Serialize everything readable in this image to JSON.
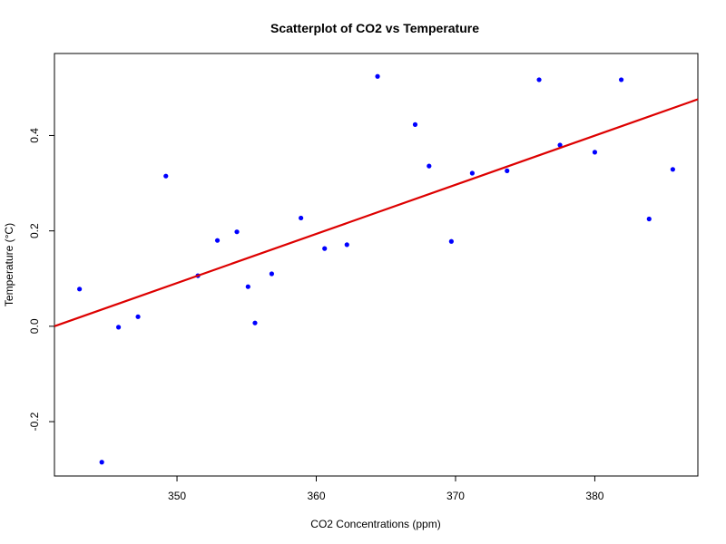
{
  "chart_data": {
    "type": "scatter",
    "title": "Scatterplot of CO2 vs Temperature",
    "xlabel": "CO2 Concentrations (ppm)",
    "ylabel": "Temperature (°C)",
    "xlim": [
      341.2,
      387.4
    ],
    "ylim": [
      -0.314,
      0.572
    ],
    "x_ticks": [
      350,
      360,
      370,
      380
    ],
    "x_tick_labels": [
      "350",
      "360",
      "370",
      "380"
    ],
    "y_ticks": [
      -0.2,
      0.0,
      0.2,
      0.4
    ],
    "y_tick_labels": [
      "-0.2",
      "0.0",
      "0.2",
      "0.4"
    ],
    "grid": false,
    "legend": "none",
    "point_color": "#0000ff",
    "line_color": "#dd0000",
    "points": [
      {
        "x": 343.0,
        "y": 0.078
      },
      {
        "x": 344.6,
        "y": -0.285
      },
      {
        "x": 345.8,
        "y": -0.002
      },
      {
        "x": 347.2,
        "y": 0.02
      },
      {
        "x": 349.2,
        "y": 0.315
      },
      {
        "x": 351.5,
        "y": 0.106
      },
      {
        "x": 352.9,
        "y": 0.18
      },
      {
        "x": 354.3,
        "y": 0.198
      },
      {
        "x": 355.1,
        "y": 0.083
      },
      {
        "x": 355.6,
        "y": 0.007
      },
      {
        "x": 356.8,
        "y": 0.11
      },
      {
        "x": 358.9,
        "y": 0.227
      },
      {
        "x": 360.6,
        "y": 0.163
      },
      {
        "x": 362.2,
        "y": 0.171
      },
      {
        "x": 364.4,
        "y": 0.524
      },
      {
        "x": 367.1,
        "y": 0.423
      },
      {
        "x": 368.1,
        "y": 0.336
      },
      {
        "x": 369.7,
        "y": 0.178
      },
      {
        "x": 371.2,
        "y": 0.321
      },
      {
        "x": 373.7,
        "y": 0.326
      },
      {
        "x": 376.0,
        "y": 0.517
      },
      {
        "x": 377.5,
        "y": 0.38
      },
      {
        "x": 380.0,
        "y": 0.365
      },
      {
        "x": 381.9,
        "y": 0.517
      },
      {
        "x": 383.9,
        "y": 0.225
      },
      {
        "x": 385.6,
        "y": 0.329
      }
    ],
    "regression_line": {
      "x": [
        341.2,
        387.4
      ],
      "y": [
        0.0,
        0.476
      ]
    }
  }
}
